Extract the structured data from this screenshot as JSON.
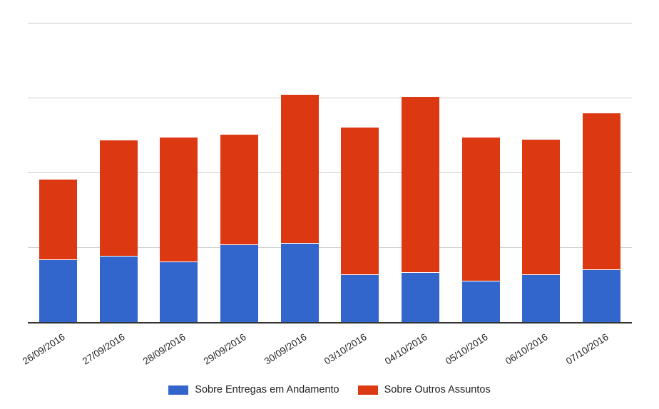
{
  "chart_data": {
    "type": "bar",
    "stacked": true,
    "title": "",
    "xlabel": "",
    "ylabel": "",
    "categories": [
      "26/09/2016",
      "27/09/2016",
      "28/09/2016",
      "29/09/2016",
      "30/09/2016",
      "03/10/2016",
      "04/10/2016",
      "05/10/2016",
      "06/10/2016",
      "07/10/2016"
    ],
    "series": [
      {
        "name": "Sobre Entregas em Andamento",
        "color": "#3366CC",
        "values": [
          8.3,
          8.8,
          8.0,
          10.3,
          10.5,
          6.3,
          6.6,
          5.4,
          6.3,
          7.0
        ]
      },
      {
        "name": "Sobre Outros Assuntos",
        "color": "#DC3912",
        "values": [
          10.7,
          15.4,
          16.6,
          14.7,
          19.8,
          19.6,
          23.4,
          19.2,
          18.0,
          20.8
        ]
      }
    ],
    "stack_totals": [
      19.0,
      24.2,
      24.6,
      25.0,
      30.3,
      25.9,
      30.0,
      24.6,
      24.3,
      27.8
    ],
    "ylim": [
      0,
      40
    ],
    "gridline_values": [
      10,
      20,
      30,
      40
    ],
    "y_tick_labels_shown": false,
    "grid_on": true,
    "legend_position": "bottom",
    "x_label_rotation_deg": -33,
    "colors": {
      "grid": "#CCCCCC",
      "axis_line": "#333333",
      "label_text": "#222222",
      "background": "#FFFFFF"
    }
  }
}
